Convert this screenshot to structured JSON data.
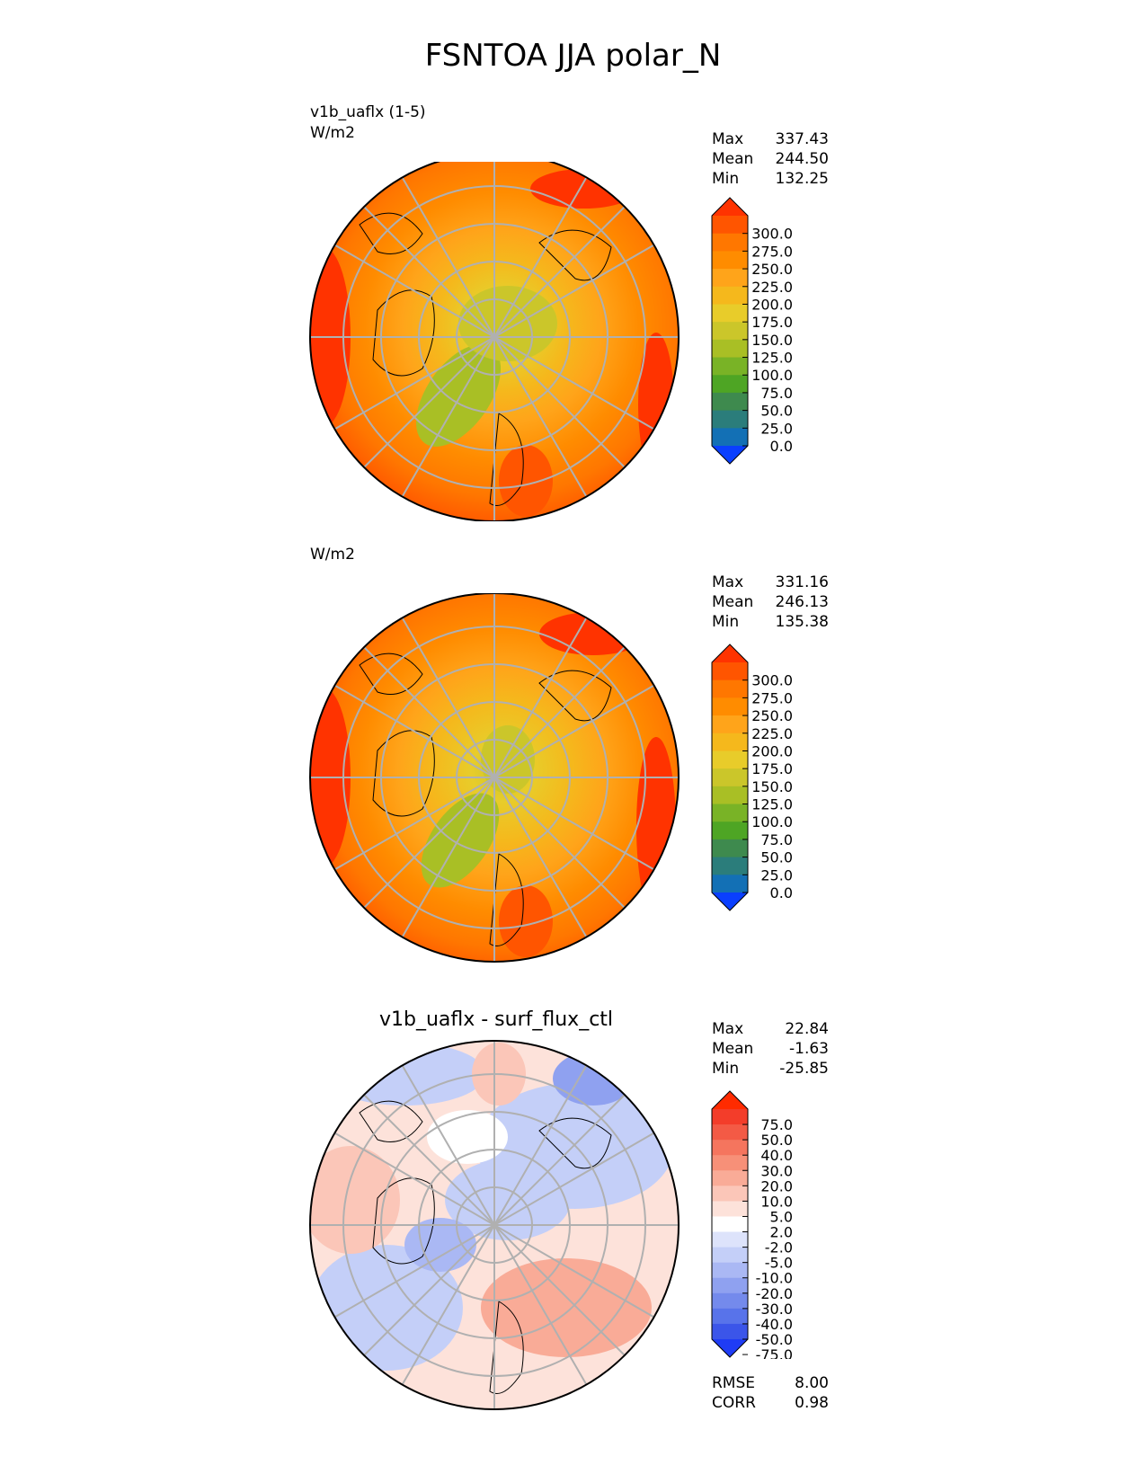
{
  "figure_title": "FSNTOA JJA polar_N",
  "panels": [
    {
      "label_line1": "v1b_uaflx (1-5)",
      "label_line2": "W/m2",
      "stats": [
        {
          "label": "Max",
          "value": "337.43"
        },
        {
          "label": "Mean",
          "value": "244.50"
        },
        {
          "label": "Min",
          "value": "132.25"
        }
      ]
    },
    {
      "label_line1": "",
      "label_line2": "W/m2",
      "stats": [
        {
          "label": "Max",
          "value": "331.16"
        },
        {
          "label": "Mean",
          "value": "246.13"
        },
        {
          "label": "Min",
          "value": "135.38"
        }
      ]
    },
    {
      "title": "v1b_uaflx - surf_flux_ctl",
      "stats": [
        {
          "label": "Max",
          "value": "22.84"
        },
        {
          "label": "Mean",
          "value": "-1.63"
        },
        {
          "label": "Min",
          "value": "-25.85"
        }
      ],
      "metrics": [
        {
          "label": "RMSE",
          "value": "8.00"
        },
        {
          "label": "CORR",
          "value": "0.98"
        }
      ]
    }
  ],
  "colorbars": {
    "field": {
      "ticks": [
        "300.0",
        "275.0",
        "250.0",
        "225.0",
        "200.0",
        "175.0",
        "150.0",
        "125.0",
        "100.0",
        "75.0",
        "50.0",
        "25.0",
        "0.0"
      ],
      "colors": [
        "#ff3300",
        "#ff5500",
        "#ff7700",
        "#ff8c00",
        "#ffa41a",
        "#f5b81c",
        "#e8cc2a",
        "#cbc62a",
        "#a9bf25",
        "#79b326",
        "#4ea524",
        "#3e8a4e",
        "#2b7d7b",
        "#1370b5",
        "#0a3fff"
      ]
    },
    "diff": {
      "ticks": [
        "75.0",
        "50.0",
        "40.0",
        "30.0",
        "20.0",
        "10.0",
        "5.0",
        "2.0",
        "-2.0",
        "-5.0",
        "-10.0",
        "-20.0",
        "-30.0",
        "-40.0",
        "-50.0",
        "-75.0"
      ],
      "colors": [
        "#ff2b00",
        "#f33d2a",
        "#f35a45",
        "#f5755e",
        "#f79078",
        "#f9ab97",
        "#fbc6b8",
        "#fde2da",
        "#ffffff",
        "#dde3fb",
        "#c4cff8",
        "#aab8f4",
        "#8fa1f0",
        "#748aec",
        "#5873ea",
        "#3b55e9",
        "#1f3cf5"
      ]
    }
  },
  "chart_data": [
    {
      "type": "heatmap",
      "projection": "polar stereographic (north pole)",
      "title": "v1b_uaflx (1-5)",
      "units": "W/m2",
      "max": 337.43,
      "mean": 244.5,
      "min": 132.25,
      "contour_levels": [
        0,
        25,
        50,
        75,
        100,
        125,
        150,
        175,
        200,
        225,
        250,
        275,
        300
      ]
    },
    {
      "type": "heatmap",
      "projection": "polar stereographic (north pole)",
      "title": "",
      "units": "W/m2",
      "max": 331.16,
      "mean": 246.13,
      "min": 135.38,
      "contour_levels": [
        0,
        25,
        50,
        75,
        100,
        125,
        150,
        175,
        200,
        225,
        250,
        275,
        300
      ]
    },
    {
      "type": "heatmap",
      "projection": "polar stereographic (north pole)",
      "title": "v1b_uaflx - surf_flux_ctl",
      "max": 22.84,
      "mean": -1.63,
      "min": -25.85,
      "rmse": 8.0,
      "corr": 0.98,
      "contour_levels": [
        -75,
        -50,
        -40,
        -30,
        -20,
        -10,
        -5,
        -2,
        2,
        5,
        10,
        20,
        30,
        40,
        50,
        75
      ]
    }
  ]
}
